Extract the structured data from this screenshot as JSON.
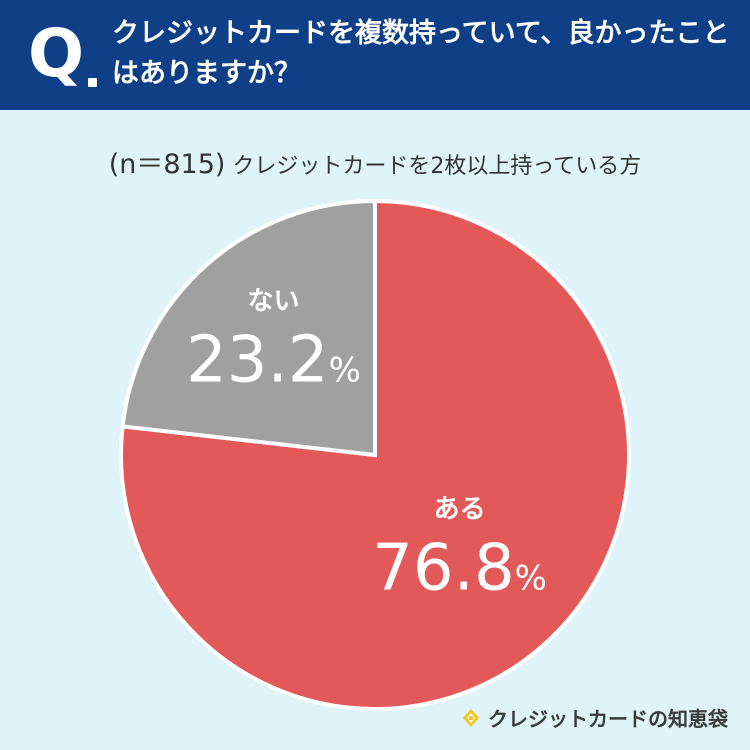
{
  "header": {
    "q_letter": "Q",
    "question": "クレジットカードを複数持っていて、良かったことはありますか？"
  },
  "sample": {
    "n_label": "(n＝815)",
    "description": "クレジットカードを2枚以上持っている方"
  },
  "chart_data": {
    "type": "pie",
    "title": "",
    "slices": [
      {
        "label": "ある",
        "value": 76.8,
        "display": "76.8",
        "unit": "%",
        "color": "#e35858"
      },
      {
        "label": "ない",
        "value": 23.2,
        "display": "23.2",
        "unit": "%",
        "color": "#a0a0a0"
      }
    ]
  },
  "brand": {
    "name": "クレジットカードの知恵袋",
    "icon": "lightbulb-icon"
  }
}
